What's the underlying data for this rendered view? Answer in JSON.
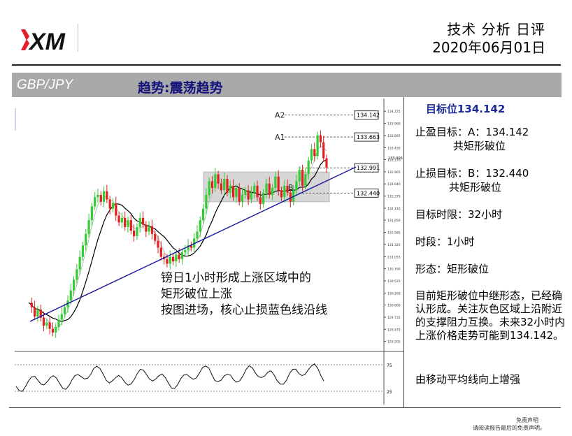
{
  "brand": {
    "logo_text": "XM",
    "logo_red": "#e31e24"
  },
  "header": {
    "title": "技术 分析 日评",
    "date": "2020年06月01日"
  },
  "banner": {
    "pair": "GBP/JPY",
    "trend": "趋势:震荡趋势"
  },
  "colors": {
    "banner_bg": "#a9a9a9",
    "trendline": "#1a1aa0",
    "rect_zone": "#d6d6d6",
    "bull_candle": "#33cc33",
    "bear_candle": "#e02020",
    "ma_fast": "#bbbbbb",
    "ma_slow": "#000000"
  },
  "right_panel": {
    "target": "目标位134.142",
    "take_profit_1": "止盈目标：A：134.142",
    "take_profit_2": "共矩形破位",
    "stop_loss_1": "止损目标：B：132.440",
    "stop_loss_2": "共矩形破位",
    "time_limit": "目标时限：32小时",
    "timeframe": "时段：1小时",
    "pattern": "形态：矩形破位",
    "description": "目前矩形破位中继形态，已经确认形成。关注灰色区域上沿附近的支撑阻力互换。未来32小时内上涨价格走势可能到134.142。",
    "note": "由移动平均线向上增强"
  },
  "disclaimer": {
    "line1": "免责声明",
    "line2": "请阅读报告最后的免责声明。"
  },
  "chart_data": {
    "type": "candlestick",
    "instrument": "GBP/JPY",
    "timeframe": "1小时",
    "ylim": [
      129.2,
      134.35
    ],
    "levels": [
      {
        "name": "A2",
        "value": 134.142,
        "label": "134.142"
      },
      {
        "name": "A1",
        "value": 133.663,
        "label": "133.663"
      },
      {
        "name": "",
        "value": 132.991,
        "label": "132.991"
      },
      {
        "name": "",
        "value": 132.44,
        "label": "132.440"
      }
    ],
    "point_labels": [
      "A2",
      "A1",
      "B"
    ],
    "current_price": "133.006",
    "annotation": [
      "镑日1小时形成上涨区域中的",
      "矩形破位上涨",
      "按图进场，核心止损蓝色线沿线"
    ],
    "y_ticks": [
      "134.225",
      "133.960",
      "133.695",
      "133.430",
      "133.170",
      "132.905",
      "132.640",
      "132.375",
      "132.110",
      "131.850",
      "131.585",
      "131.320",
      "131.055",
      "130.790",
      "130.525",
      "130.260",
      "130.000",
      "129.735",
      "129.470",
      "129.205"
    ],
    "zone": {
      "from": 132.25,
      "to": 132.9
    },
    "closes": [
      130.05,
      129.95,
      129.75,
      129.9,
      129.72,
      129.55,
      129.62,
      129.48,
      129.4,
      129.52,
      129.68,
      129.8,
      129.95,
      130.1,
      130.32,
      130.55,
      130.78,
      131.05,
      131.3,
      131.55,
      131.85,
      132.15,
      132.35,
      132.4,
      132.25,
      132.48,
      132.3,
      132.1,
      132.22,
      131.95,
      131.8,
      131.9,
      131.7,
      131.85,
      131.62,
      131.5,
      131.7,
      131.9,
      131.75,
      131.6,
      131.72,
      131.55,
      131.4,
      131.25,
      131.05,
      131.0,
      130.9,
      131.05,
      130.95,
      131.1,
      131.0,
      131.15,
      131.2,
      131.3,
      131.25,
      131.45,
      131.6,
      131.85,
      132.1,
      132.4,
      132.7,
      132.55,
      132.85,
      132.65,
      132.5,
      132.75,
      132.45,
      132.6,
      132.35,
      132.55,
      132.25,
      132.4,
      132.5,
      132.3,
      132.45,
      132.6,
      132.35,
      132.2,
      132.45,
      132.65,
      132.4,
      132.55,
      132.8,
      132.5,
      132.35,
      132.6,
      132.45,
      132.25,
      132.5,
      132.7,
      132.95,
      132.6,
      132.85,
      133.15,
      133.4,
      133.25,
      133.7,
      133.55,
      133.2,
      133.0
    ],
    "oscillator": {
      "upper": "75",
      "lower": "25"
    }
  }
}
